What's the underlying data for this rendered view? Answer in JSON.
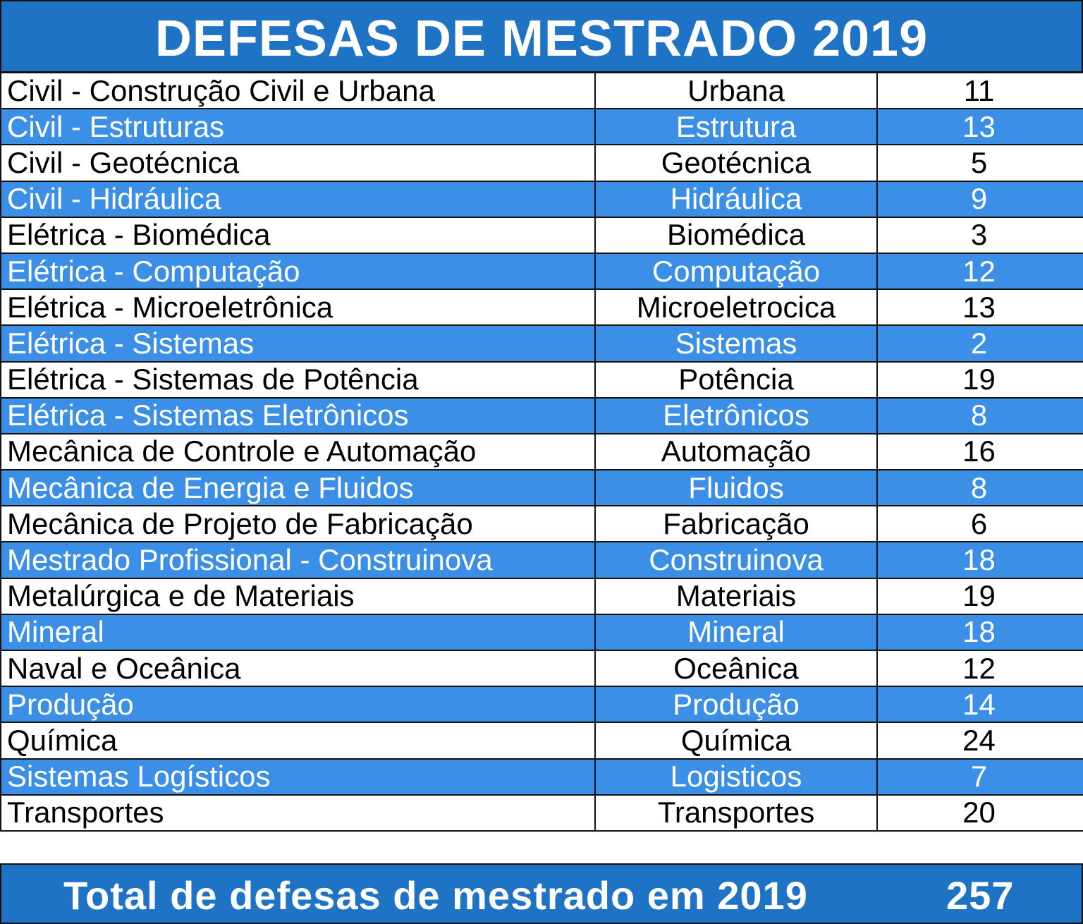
{
  "title": "DEFESAS DE MESTRADO 2019",
  "rows": [
    {
      "program": "Civil - Construção Civil e Urbana",
      "area": "Urbana",
      "count": "11"
    },
    {
      "program": "Civil - Estruturas",
      "area": "Estrutura",
      "count": "13"
    },
    {
      "program": "Civil - Geotécnica",
      "area": "Geotécnica",
      "count": "5"
    },
    {
      "program": "Civil - Hidráulica",
      "area": "Hidráulica",
      "count": "9"
    },
    {
      "program": "Elétrica - Biomédica",
      "area": "Biomédica",
      "count": "3"
    },
    {
      "program": "Elétrica - Computação",
      "area": "Computação",
      "count": "12"
    },
    {
      "program": "Elétrica - Microeletrônica",
      "area": "Microeletrocica",
      "count": "13"
    },
    {
      "program": "Elétrica - Sistemas",
      "area": "Sistemas",
      "count": "2"
    },
    {
      "program": "Elétrica - Sistemas de Potência",
      "area": "Potência",
      "count": "19"
    },
    {
      "program": "Elétrica - Sistemas Eletrônicos",
      "area": "Eletrônicos",
      "count": "8"
    },
    {
      "program": "Mecânica de Controle e Automação",
      "area": "Automação",
      "count": "16"
    },
    {
      "program": "Mecânica de Energia e Fluidos",
      "area": "Fluidos",
      "count": "8"
    },
    {
      "program": "Mecânica de Projeto de Fabricação",
      "area": "Fabricação",
      "count": "6"
    },
    {
      "program": "Mestrado Profissional - Construinova",
      "area": "Construinova",
      "count": "18"
    },
    {
      "program": "Metalúrgica e de Materiais",
      "area": "Materiais",
      "count": "19"
    },
    {
      "program": "Mineral",
      "area": "Mineral",
      "count": "18"
    },
    {
      "program": "Naval e Oceânica",
      "area": "Oceânica",
      "count": "12"
    },
    {
      "program": "Produção",
      "area": "Produção",
      "count": "14"
    },
    {
      "program": "Química",
      "area": "Química",
      "count": "24"
    },
    {
      "program": "Sistemas Logísticos",
      "area": "Logisticos",
      "count": "7"
    },
    {
      "program": "Transportes",
      "area": "Transportes",
      "count": "20"
    }
  ],
  "total": {
    "label": "Total de defesas de mestrado em 2019",
    "value": "257"
  },
  "colors": {
    "header_blue": "#1e73c4",
    "stripe_blue": "#3b8fe6",
    "text_dark": "#000000",
    "text_light": "#ffffff"
  }
}
